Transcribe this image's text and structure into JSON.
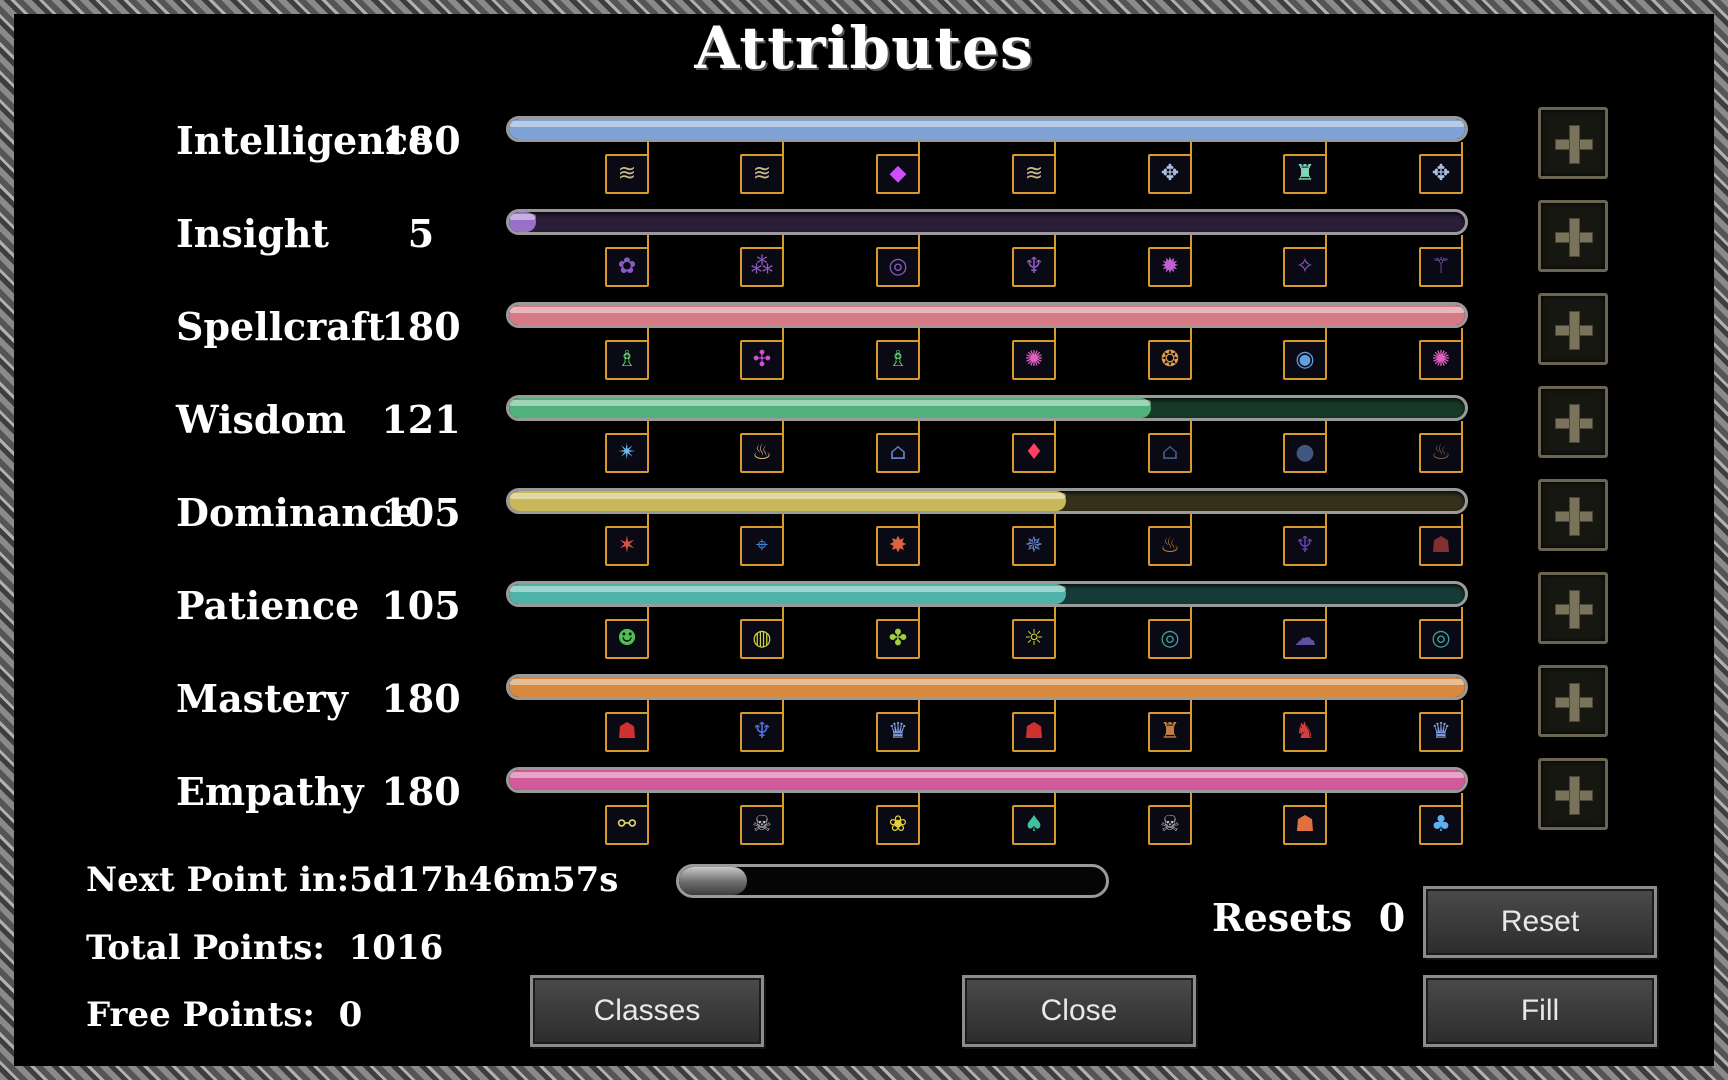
{
  "title": "Attributes",
  "max_value": 180,
  "attributes": [
    {
      "name": "Intelligence",
      "value": "180",
      "level": 1.0,
      "color": "#7fa3d6",
      "rest": "#1a2436",
      "perks": [
        {
          "icon": "ornate-glyph-icon",
          "glyph": "≋",
          "color": "#c9b98a"
        },
        {
          "icon": "ornate-glyph-icon",
          "glyph": "≋",
          "color": "#c9b98a"
        },
        {
          "icon": "purple-diamond-icon",
          "glyph": "◆",
          "color": "#d24bff"
        },
        {
          "icon": "ornate-glyph-icon",
          "glyph": "≋",
          "color": "#c9b98a"
        },
        {
          "icon": "ornate-winged-icon",
          "glyph": "✥",
          "color": "#aabfe0"
        },
        {
          "icon": "tower-icon",
          "glyph": "♜",
          "color": "#7fd6b6"
        },
        {
          "icon": "ornate-winged-icon",
          "glyph": "✥",
          "color": "#aabfe0"
        }
      ]
    },
    {
      "name": "Insight",
      "value": "5",
      "level": 0.028,
      "color": "#9a6fc9",
      "rest": "#2a1e3a",
      "perks": [
        {
          "icon": "swirl-icon",
          "glyph": "✿",
          "color": "#8a5ac0"
        },
        {
          "icon": "triple-orb-icon",
          "glyph": "⁂",
          "color": "#8a5ac0"
        },
        {
          "icon": "vortex-icon",
          "glyph": "◎",
          "color": "#8a5ac0"
        },
        {
          "icon": "candle-icon",
          "glyph": "♆",
          "color": "#8a5ac0"
        },
        {
          "icon": "star-burst-icon",
          "glyph": "✹",
          "color": "#c060d0"
        },
        {
          "icon": "rune-icon",
          "glyph": "✧",
          "color": "#8a5ac0"
        },
        {
          "icon": "staff-icon",
          "glyph": "⚚",
          "color": "#8a5ac0"
        }
      ]
    },
    {
      "name": "Spellcraft",
      "value": "180",
      "level": 1.0,
      "color": "#d67a86",
      "rest": "#3a1a20",
      "perks": [
        {
          "icon": "flask-icon",
          "glyph": "♗",
          "color": "#63d46b"
        },
        {
          "icon": "target-sigil-icon",
          "glyph": "✣",
          "color": "#d04fd8"
        },
        {
          "icon": "flask-icon",
          "glyph": "♗",
          "color": "#63d46b"
        },
        {
          "icon": "splatter-icon",
          "glyph": "✺",
          "color": "#e060c0"
        },
        {
          "icon": "orb-icon",
          "glyph": "❂",
          "color": "#e0a050"
        },
        {
          "icon": "portal-icon",
          "glyph": "◉",
          "color": "#60a0e0"
        },
        {
          "icon": "splatter-icon",
          "glyph": "✺",
          "color": "#e060c0"
        }
      ]
    },
    {
      "name": "Wisdom",
      "value": "121",
      "level": 0.672,
      "color": "#4fb27a",
      "rest": "#163a26",
      "perks": [
        {
          "icon": "lightning-orb-icon",
          "glyph": "✴",
          "color": "#6fb8f0"
        },
        {
          "icon": "lantern-icon",
          "glyph": "♨",
          "color": "#e0c080"
        },
        {
          "icon": "altar-icon",
          "glyph": "⌂",
          "color": "#6080c0"
        },
        {
          "icon": "flame-drop-icon",
          "glyph": "♦",
          "color": "#ff4060"
        },
        {
          "icon": "altar-icon",
          "glyph": "⌂",
          "color": "#405880"
        },
        {
          "icon": "sphere-icon",
          "glyph": "●",
          "color": "#405880"
        },
        {
          "icon": "lantern-icon",
          "glyph": "♨",
          "color": "#806040"
        }
      ]
    },
    {
      "name": "Dominance",
      "value": "105",
      "level": 0.583,
      "color": "#c9b85a",
      "rest": "#34301a",
      "perks": [
        {
          "icon": "spark-icon",
          "glyph": "✶",
          "color": "#e05040"
        },
        {
          "icon": "crosshair-icon",
          "glyph": "⌖",
          "color": "#4080d0"
        },
        {
          "icon": "fire-burst-icon",
          "glyph": "✸",
          "color": "#e06040"
        },
        {
          "icon": "compass-icon",
          "glyph": "✵",
          "color": "#6080c0"
        },
        {
          "icon": "flame-icon",
          "glyph": "♨",
          "color": "#c08030"
        },
        {
          "icon": "candle-icon",
          "glyph": "♆",
          "color": "#6040a0"
        },
        {
          "icon": "demon-icon",
          "glyph": "☗",
          "color": "#803030"
        }
      ]
    },
    {
      "name": "Patience",
      "value": "105",
      "level": 0.583,
      "color": "#4fb2a8",
      "rest": "#163a36",
      "perks": [
        {
          "icon": "slime-icon",
          "glyph": "☻",
          "color": "#50c050"
        },
        {
          "icon": "cauldron-icon",
          "glyph": "◍",
          "color": "#d0d040"
        },
        {
          "icon": "clover-icon",
          "glyph": "✤",
          "color": "#a0d040"
        },
        {
          "icon": "sun-orb-icon",
          "glyph": "☼",
          "color": "#d0d040"
        },
        {
          "icon": "ripple-icon",
          "glyph": "◎",
          "color": "#40a0a0"
        },
        {
          "icon": "cloud-icon",
          "glyph": "☁",
          "color": "#6050a0"
        },
        {
          "icon": "ripple-icon",
          "glyph": "◎",
          "color": "#40a0a0"
        }
      ]
    },
    {
      "name": "Mastery",
      "value": "180",
      "level": 1.0,
      "color": "#d6893f",
      "rest": "#3a2414",
      "perks": [
        {
          "icon": "hooded-figure-icon",
          "glyph": "☗",
          "color": "#d03030"
        },
        {
          "icon": "blue-flame-icon",
          "glyph": "♆",
          "color": "#5070e0"
        },
        {
          "icon": "wraith-icon",
          "glyph": "♛",
          "color": "#80a0e0"
        },
        {
          "icon": "hooded-figure-icon",
          "glyph": "☗",
          "color": "#d03030"
        },
        {
          "icon": "shrine-icon",
          "glyph": "♜",
          "color": "#c08040"
        },
        {
          "icon": "horned-demon-icon",
          "glyph": "♞",
          "color": "#d04040"
        },
        {
          "icon": "wraith-icon",
          "glyph": "♛",
          "color": "#80a0e0"
        }
      ]
    },
    {
      "name": "Empathy",
      "value": "180",
      "level": 1.0,
      "color": "#d25a9a",
      "rest": "#3a1428",
      "perks": [
        {
          "icon": "bone-icon",
          "glyph": "⚯",
          "color": "#e0d070"
        },
        {
          "icon": "skull-mask-icon",
          "glyph": "☠",
          "color": "#c0c0c0"
        },
        {
          "icon": "spirit-icon",
          "glyph": "❀",
          "color": "#e0d040"
        },
        {
          "icon": "green-flame-icon",
          "glyph": "♠",
          "color": "#40c0a0"
        },
        {
          "icon": "skull-mask-icon",
          "glyph": "☠",
          "color": "#c0c0c0"
        },
        {
          "icon": "demon-face-icon",
          "glyph": "☗",
          "color": "#e07040"
        },
        {
          "icon": "blue-spirit-icon",
          "glyph": "♣",
          "color": "#60b0f0"
        }
      ]
    }
  ],
  "info": {
    "next_point_label": "Next Point in:",
    "next_point_value": "5d17h46m57s",
    "total_points_label": "Total Points:",
    "total_points_value": "1016",
    "free_points_label": "Free Points:",
    "free_points_value": "0",
    "next_point_progress": 0.16
  },
  "resets_label": "Resets",
  "resets_value": "0",
  "buttons": {
    "classes": "Classes",
    "close": "Close",
    "reset": "Reset",
    "fill": "Fill"
  }
}
